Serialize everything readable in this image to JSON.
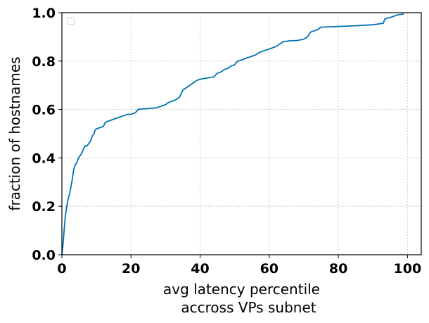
{
  "chart_data": {
    "type": "line",
    "title": "",
    "xlabel_lines": [
      "avg latency percentile",
      "accross VPs subnet"
    ],
    "ylabel": "fraction of hostnames",
    "xlim": [
      0,
      104
    ],
    "ylim": [
      0.0,
      1.0
    ],
    "xticks": [
      0,
      20,
      40,
      60,
      80,
      100
    ],
    "yticks": [
      0.0,
      0.2,
      0.4,
      0.6,
      0.8,
      1.0
    ],
    "xtick_labels": [
      "0",
      "20",
      "40",
      "60",
      "80",
      "100"
    ],
    "ytick_labels": [
      "0.0",
      "0.2",
      "0.4",
      "0.6",
      "0.8",
      "1.0"
    ],
    "grid": true,
    "legend": {
      "placement": "upper-left",
      "entries": []
    },
    "series": [
      {
        "color": "#0072b2",
        "x": [
          0,
          0.3,
          0.6,
          1.0,
          1.4,
          1.8,
          2.2,
          2.6,
          3.0,
          3.4,
          3.8,
          4.3,
          4.8,
          5.3,
          5.8,
          6.3,
          6.8,
          7.3,
          7.8,
          8.3,
          8.8,
          9.3,
          9.6,
          10.0,
          11.0,
          12.0,
          12.5,
          13.0,
          14.0,
          15.0,
          16.0,
          17.0,
          18.0,
          19.0,
          20.0,
          21.0,
          21.5,
          22.0,
          23.0,
          25.0,
          27.0,
          28.0,
          29.0,
          30.0,
          31.0,
          32.0,
          33.0,
          34.0,
          34.5,
          35.0,
          36.0,
          37.0,
          38.0,
          39.0,
          40.0,
          42.0,
          44.0,
          45.0,
          46.0,
          47.0,
          48.0,
          49.0,
          50.0,
          50.5,
          51.0,
          52.0,
          53.0,
          54.0,
          55.0,
          56.0,
          57.0,
          58.0,
          59.0,
          60.0,
          61.0,
          62.0,
          63.0,
          64.0,
          65.0,
          66.0,
          68.0,
          70.0,
          71.0,
          72.0,
          73.0,
          74.0,
          75.0,
          80.0,
          85.0,
          90.0,
          91.0,
          92.0,
          93.0,
          93.5,
          95.0,
          97.0,
          99.0
        ],
        "y": [
          0.0,
          0.04,
          0.09,
          0.16,
          0.2,
          0.23,
          0.25,
          0.28,
          0.31,
          0.35,
          0.37,
          0.38,
          0.4,
          0.41,
          0.42,
          0.44,
          0.45,
          0.45,
          0.46,
          0.47,
          0.49,
          0.5,
          0.515,
          0.52,
          0.525,
          0.53,
          0.545,
          0.55,
          0.555,
          0.56,
          0.565,
          0.57,
          0.575,
          0.58,
          0.58,
          0.585,
          0.59,
          0.6,
          0.602,
          0.604,
          0.606,
          0.61,
          0.615,
          0.62,
          0.63,
          0.635,
          0.64,
          0.65,
          0.665,
          0.68,
          0.69,
          0.7,
          0.71,
          0.72,
          0.725,
          0.73,
          0.735,
          0.75,
          0.755,
          0.765,
          0.77,
          0.78,
          0.785,
          0.795,
          0.8,
          0.805,
          0.81,
          0.815,
          0.82,
          0.825,
          0.835,
          0.84,
          0.845,
          0.85,
          0.855,
          0.86,
          0.87,
          0.88,
          0.882,
          0.884,
          0.885,
          0.89,
          0.9,
          0.92,
          0.925,
          0.93,
          0.94,
          0.943,
          0.946,
          0.95,
          0.952,
          0.954,
          0.956,
          0.975,
          0.98,
          0.99,
          0.995
        ]
      }
    ]
  }
}
